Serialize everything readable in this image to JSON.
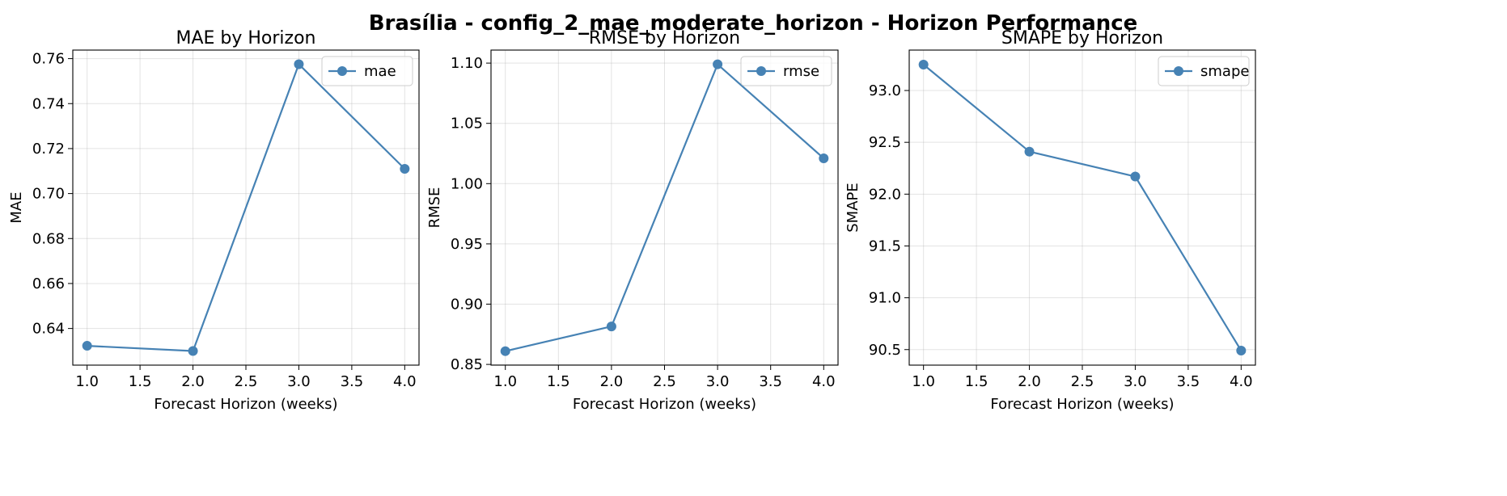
{
  "figure": {
    "title": "Brasília - config_2_mae_moderate_horizon - Horizon Performance",
    "line_color": "#4682b4"
  },
  "chart_data": [
    {
      "type": "line",
      "title": "MAE by Horizon",
      "xlabel": "Forecast Horizon (weeks)",
      "ylabel": "MAE",
      "x": [
        1.0,
        2.0,
        3.0,
        4.0
      ],
      "series": [
        {
          "name": "mae",
          "values": [
            0.6323,
            0.63,
            0.7575,
            0.711
          ]
        }
      ],
      "xlim": [
        0.865,
        4.135
      ],
      "ylim": [
        0.6237,
        0.7638
      ],
      "xticks": [
        1.0,
        1.5,
        2.0,
        2.5,
        3.0,
        3.5,
        4.0
      ],
      "xtick_labels": [
        "1.0",
        "1.5",
        "2.0",
        "2.5",
        "3.0",
        "3.5",
        "4.0"
      ],
      "yticks": [
        0.64,
        0.66,
        0.68,
        0.7,
        0.72,
        0.74,
        0.76
      ],
      "ytick_labels": [
        "0.64",
        "0.66",
        "0.68",
        "0.70",
        "0.72",
        "0.74",
        "0.76"
      ],
      "grid": true,
      "legend_position": "top-right"
    },
    {
      "type": "line",
      "title": "RMSE by Horizon",
      "xlabel": "Forecast Horizon (weeks)",
      "ylabel": "RMSE",
      "x": [
        1.0,
        2.0,
        3.0,
        4.0
      ],
      "series": [
        {
          "name": "rmse",
          "values": [
            0.861,
            0.8815,
            1.099,
            1.021
          ]
        }
      ],
      "xlim": [
        0.865,
        4.135
      ],
      "ylim": [
        0.8494,
        1.1108
      ],
      "xticks": [
        1.0,
        1.5,
        2.0,
        2.5,
        3.0,
        3.5,
        4.0
      ],
      "xtick_labels": [
        "1.0",
        "1.5",
        "2.0",
        "2.5",
        "3.0",
        "3.5",
        "4.0"
      ],
      "yticks": [
        0.85,
        0.9,
        0.95,
        1.0,
        1.05,
        1.1
      ],
      "ytick_labels": [
        "0.85",
        "0.90",
        "0.95",
        "1.00",
        "1.05",
        "1.10"
      ],
      "grid": true,
      "legend_position": "top-right"
    },
    {
      "type": "line",
      "title": "SMAPE by Horizon",
      "xlabel": "Forecast Horizon (weeks)",
      "ylabel": "SMAPE",
      "x": [
        1.0,
        2.0,
        3.0,
        4.0
      ],
      "series": [
        {
          "name": "smape",
          "values": [
            93.25,
            92.41,
            92.17,
            90.49
          ]
        }
      ],
      "xlim": [
        0.865,
        4.135
      ],
      "ylim": [
        90.35,
        93.39
      ],
      "xticks": [
        1.0,
        1.5,
        2.0,
        2.5,
        3.0,
        3.5,
        4.0
      ],
      "xtick_labels": [
        "1.0",
        "1.5",
        "2.0",
        "2.5",
        "3.0",
        "3.5",
        "4.0"
      ],
      "yticks": [
        90.5,
        91.0,
        91.5,
        92.0,
        92.5,
        93.0
      ],
      "ytick_labels": [
        "90.5",
        "91.0",
        "91.5",
        "92.0",
        "92.5",
        "93.0"
      ],
      "grid": true,
      "legend_position": "top-right"
    }
  ]
}
